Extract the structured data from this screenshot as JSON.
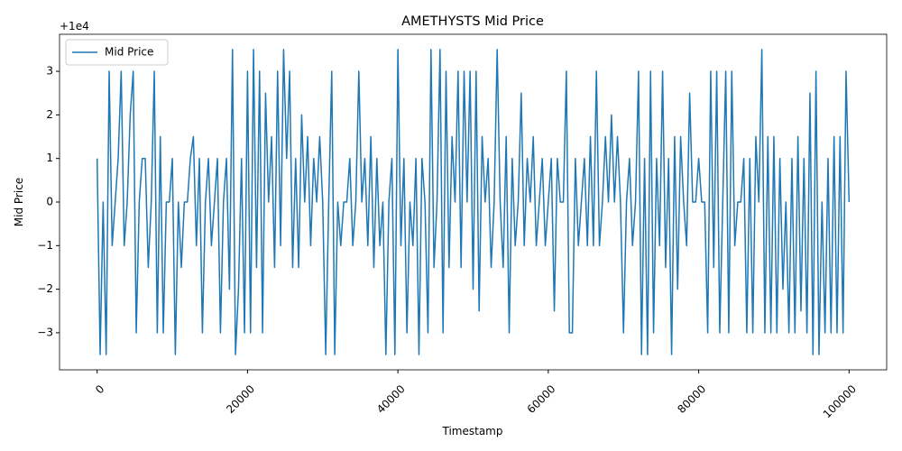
{
  "chart_data": {
    "type": "line",
    "title": "AMETHYSTS Mid Price",
    "x_label": "Timestamp",
    "y_label": "Mid Price",
    "y_offset_label": "+1e4",
    "legend": "upper left",
    "grid": false,
    "xlim": [
      -5000,
      105000
    ],
    "ylim": [
      -3.85,
      3.85
    ],
    "xticks": [
      0,
      20000,
      40000,
      60000,
      80000,
      100000
    ],
    "yticks": [
      {
        "value": -3,
        "label": "−3"
      },
      {
        "value": -2,
        "label": "−2"
      },
      {
        "value": -1,
        "label": "−1"
      },
      0,
      1,
      2,
      3
    ],
    "x": [
      0,
      400,
      800,
      1200,
      1600,
      2000,
      2400,
      2800,
      3200,
      3600,
      4000,
      4400,
      4800,
      5200,
      5600,
      6000,
      6400,
      6800,
      7200,
      7600,
      8000,
      8400,
      8800,
      9200,
      9600,
      10000,
      10400,
      10800,
      11200,
      11600,
      12000,
      12400,
      12800,
      13200,
      13600,
      14000,
      14400,
      14800,
      15200,
      15600,
      16000,
      16400,
      16800,
      17200,
      17600,
      18000,
      18400,
      18800,
      19200,
      19600,
      20000,
      20400,
      20800,
      21200,
      21600,
      22000,
      22400,
      22800,
      23200,
      23600,
      24000,
      24400,
      24800,
      25200,
      25600,
      26000,
      26400,
      26800,
      27200,
      27600,
      28000,
      28400,
      28800,
      29200,
      29600,
      30000,
      30400,
      30800,
      31200,
      31600,
      32000,
      32400,
      32800,
      33200,
      33600,
      34000,
      34400,
      34800,
      35200,
      35600,
      36000,
      36400,
      36800,
      37200,
      37600,
      38000,
      38400,
      38800,
      39200,
      39600,
      40000,
      40400,
      40800,
      41200,
      41600,
      42000,
      42400,
      42800,
      43200,
      43600,
      44000,
      44400,
      44800,
      45200,
      45600,
      46000,
      46400,
      46800,
      47200,
      47600,
      48000,
      48400,
      48800,
      49200,
      49600,
      50000,
      50400,
      50800,
      51200,
      51600,
      52000,
      52400,
      52800,
      53200,
      53600,
      54000,
      54400,
      54800,
      55200,
      55600,
      56000,
      56400,
      56800,
      57200,
      57600,
      58000,
      58400,
      58800,
      59200,
      59600,
      60000,
      60400,
      60800,
      61200,
      61600,
      62000,
      62400,
      62800,
      63200,
      63600,
      64000,
      64400,
      64800,
      65200,
      65600,
      66000,
      66400,
      66800,
      67200,
      67600,
      68000,
      68400,
      68800,
      69200,
      69600,
      70000,
      70400,
      70800,
      71200,
      71600,
      72000,
      72400,
      72800,
      73200,
      73600,
      74000,
      74400,
      74800,
      75200,
      75600,
      76000,
      76400,
      76800,
      77200,
      77600,
      78000,
      78400,
      78800,
      79200,
      79600,
      80000,
      80400,
      80800,
      81200,
      81600,
      82000,
      82400,
      82800,
      83200,
      83600,
      84000,
      84400,
      84800,
      85200,
      85600,
      86000,
      86400,
      86800,
      87200,
      87600,
      88000,
      88400,
      88800,
      89200,
      89600,
      90000,
      90400,
      90800,
      91200,
      91600,
      92000,
      92400,
      92800,
      93200,
      93600,
      94000,
      94400,
      94800,
      95200,
      95600,
      96000,
      96400,
      96800,
      97200,
      97600,
      98000,
      98400,
      98800,
      99200,
      99600,
      100000
    ],
    "series": [
      {
        "name": "Mid Price",
        "color": "#1f77b4",
        "values": [
          1,
          -3.5,
          0,
          -3.5,
          3,
          -1,
          0,
          1,
          3,
          -1,
          0,
          2,
          3,
          -3,
          0,
          1,
          1,
          -1.5,
          0,
          3,
          -3,
          1.5,
          -3,
          0,
          0,
          1,
          -3.5,
          0,
          -1.5,
          0,
          0,
          1,
          1.5,
          -1,
          1,
          -3,
          0,
          1,
          -1,
          0,
          1,
          -3,
          0,
          1,
          -2,
          3.5,
          -3.5,
          -2,
          1,
          -3,
          3,
          -3,
          3.5,
          -1.5,
          3,
          -3,
          2.5,
          0,
          1.5,
          -1.5,
          3,
          -1,
          3.5,
          1,
          3,
          -1.5,
          1,
          -1.5,
          2,
          0,
          1.5,
          -1,
          1,
          0,
          1.5,
          0,
          -3.5,
          0,
          3,
          -3.5,
          0,
          -1,
          0,
          0,
          1,
          -1,
          0,
          3,
          0,
          1,
          -1,
          1.5,
          -1.5,
          1,
          -1,
          0,
          -3.5,
          0,
          1,
          -3.5,
          3.5,
          -1,
          1,
          -3,
          0,
          -1,
          1,
          -3.5,
          1,
          0,
          -3,
          3.5,
          -1.5,
          0,
          3.5,
          -3,
          3,
          -1.5,
          1.5,
          0,
          3,
          -1.5,
          3,
          0,
          3,
          -2,
          3,
          -2.5,
          1.5,
          0,
          1,
          -1.5,
          0,
          3.5,
          0,
          -1.5,
          1.5,
          -3,
          1,
          -1,
          0,
          2.5,
          -1,
          1,
          0,
          1.5,
          -1,
          0,
          1,
          -1,
          0,
          1,
          -2.5,
          1,
          0,
          0,
          3,
          -3,
          -3,
          1,
          -1,
          0,
          1,
          -1,
          1.5,
          -1,
          3,
          -1,
          0,
          1.5,
          0,
          2,
          0,
          1.5,
          0,
          -3,
          0,
          1,
          -1,
          0,
          3,
          -3.5,
          1,
          -3.5,
          3,
          -3,
          1,
          -1,
          3,
          -1.5,
          1,
          -3.5,
          1.5,
          -2,
          1.5,
          0,
          -1,
          2.5,
          0,
          0,
          1,
          0,
          0,
          -3,
          3,
          -1.5,
          3,
          -3,
          0,
          3,
          -3,
          3,
          -1,
          0,
          0,
          1,
          -3,
          1,
          -3,
          1.5,
          0,
          3.5,
          -3,
          1.5,
          -3,
          1.5,
          -3,
          1,
          -2,
          0,
          -3,
          1,
          -3,
          1.5,
          -2.5,
          1,
          -3,
          2.5,
          -3.5,
          3,
          -3.5,
          0,
          -3,
          1,
          -3,
          1.5,
          -3,
          1.5,
          -3,
          3,
          0
        ]
      }
    ]
  }
}
